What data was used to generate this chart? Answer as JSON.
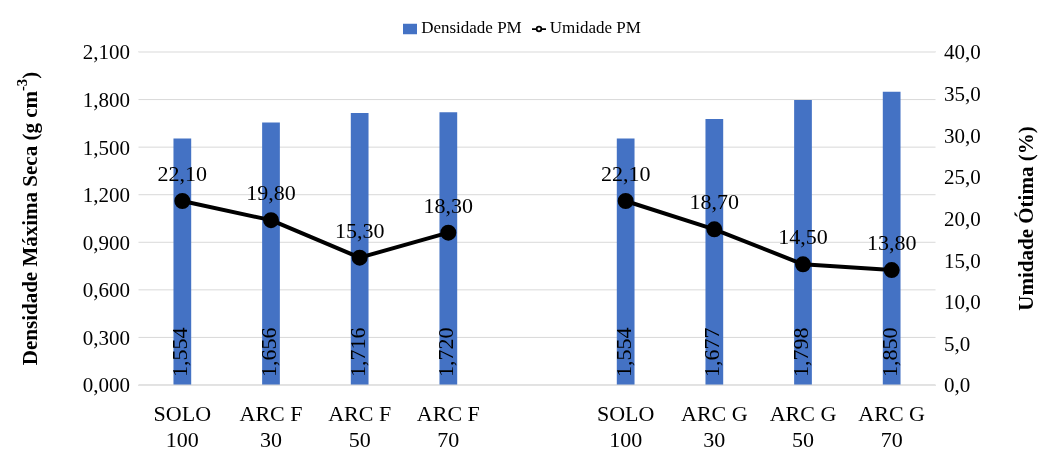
{
  "chart_data": {
    "type": "bar",
    "categories": [
      "SOLO 100",
      "ARC F 30",
      "ARC F 50",
      "ARC F 70",
      null,
      "SOLO 100",
      "ARC G 30",
      "ARC G 50",
      "ARC G 70"
    ],
    "series": [
      {
        "name": "Densidade PM",
        "axis": "y",
        "color": "#4472c4",
        "values": [
          1.554,
          1.656,
          1.716,
          1.72,
          null,
          1.554,
          1.677,
          1.798,
          1.85
        ],
        "value_labels": [
          "1,554",
          "1,656",
          "1,716",
          "1,720",
          null,
          "1,554",
          "1,677",
          "1,798",
          "1,850"
        ]
      },
      {
        "name": "Umidade PM",
        "type": "line",
        "axis": "y2",
        "color": "#000000",
        "values": [
          22.1,
          19.8,
          15.3,
          18.3,
          null,
          22.1,
          18.7,
          14.5,
          13.8
        ],
        "value_labels": [
          "22,10",
          "19,80",
          "15,30",
          "18,30",
          null,
          "22,10",
          "18,70",
          "14,50",
          "13,80"
        ]
      }
    ],
    "ylabel": "Densidade Máxima Seca (g cm$^{-3}$)",
    "y2label": "Umidade Ótima (%)",
    "ylim": [
      0,
      2.1
    ],
    "yticks": [
      {
        "value": 0,
        "label": "0,000"
      },
      {
        "value": 0.3,
        "label": "0,300"
      },
      {
        "value": 0.6,
        "label": "0,600"
      },
      {
        "value": 0.9,
        "label": "0,900"
      },
      {
        "value": 1.2,
        "label": "1,200"
      },
      {
        "value": 1.5,
        "label": "1,500"
      },
      {
        "value": 1.8,
        "label": "1,800"
      },
      {
        "value": 2.1,
        "label": "2,100"
      }
    ],
    "y2lim": [
      0,
      40
    ],
    "y2ticks": [
      {
        "value": 0,
        "label": "0,0"
      },
      {
        "value": 5,
        "label": "5,0"
      },
      {
        "value": 10,
        "label": "10,0"
      },
      {
        "value": 15,
        "label": "15,0"
      },
      {
        "value": 20,
        "label": "20,0"
      },
      {
        "value": 25,
        "label": "25,0"
      },
      {
        "value": 30,
        "label": "30,0"
      },
      {
        "value": 35,
        "label": "35,0"
      },
      {
        "value": 40,
        "label": "40,0"
      }
    ],
    "grid": "y",
    "legend": "top",
    "marker": "circle",
    "line_style": "solid"
  }
}
